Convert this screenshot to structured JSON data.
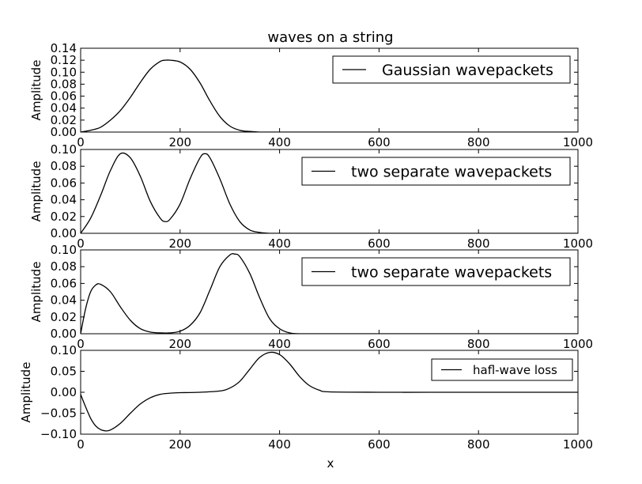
{
  "chart_data": {
    "title": "waves on a string",
    "xlabel": "x",
    "line_color": "#000000",
    "grid": false,
    "subplots": [
      {
        "type": "line",
        "ylabel": "Amplitude",
        "xlim": [
          0,
          1000
        ],
        "ylim": [
          0.0,
          0.14
        ],
        "yticks": [
          "0.00",
          "0.02",
          "0.04",
          "0.06",
          "0.08",
          "0.10",
          "0.12",
          "0.14"
        ],
        "xticks": [
          "0",
          "200",
          "400",
          "600",
          "800",
          "1000"
        ],
        "legend": {
          "label": "Gaussian wavepackets",
          "placement": "top-right",
          "size": "large"
        },
        "x": [
          0,
          20,
          40,
          60,
          80,
          100,
          120,
          140,
          160,
          170,
          180,
          200,
          220,
          240,
          260,
          280,
          300,
          320,
          340,
          360,
          380,
          400,
          500,
          600,
          700,
          800,
          900,
          1000
        ],
        "values": [
          0.0,
          0.003,
          0.008,
          0.02,
          0.036,
          0.058,
          0.083,
          0.105,
          0.118,
          0.12,
          0.12,
          0.117,
          0.105,
          0.082,
          0.052,
          0.026,
          0.01,
          0.003,
          0.001,
          0.0,
          0.0,
          0.0,
          0.0,
          0.0,
          0.0,
          0.0,
          0.0,
          0.0
        ]
      },
      {
        "type": "line",
        "ylabel": "Amplitude",
        "xlim": [
          0,
          1000
        ],
        "ylim": [
          0.0,
          0.1
        ],
        "yticks": [
          "0.00",
          "0.02",
          "0.04",
          "0.06",
          "0.08",
          "0.10"
        ],
        "xticks": [
          "0",
          "200",
          "400",
          "600",
          "800",
          "1000"
        ],
        "legend": {
          "label": "two separate wavepackets",
          "placement": "top-right",
          "size": "large"
        },
        "x": [
          0,
          20,
          40,
          60,
          80,
          100,
          120,
          140,
          160,
          170,
          180,
          200,
          220,
          240,
          250,
          260,
          280,
          300,
          320,
          340,
          360,
          380,
          400,
          500,
          600,
          700,
          800,
          900,
          1000
        ],
        "values": [
          0.0,
          0.018,
          0.045,
          0.075,
          0.095,
          0.09,
          0.068,
          0.038,
          0.018,
          0.014,
          0.017,
          0.035,
          0.065,
          0.09,
          0.095,
          0.09,
          0.065,
          0.035,
          0.014,
          0.004,
          0.001,
          0.0,
          0.0,
          0.0,
          0.0,
          0.0,
          0.0,
          0.0,
          0.0
        ]
      },
      {
        "type": "line",
        "ylabel": "Amplitude",
        "xlim": [
          0,
          1000
        ],
        "ylim": [
          0.0,
          0.1
        ],
        "yticks": [
          "0.00",
          "0.02",
          "0.04",
          "0.06",
          "0.08",
          "0.10"
        ],
        "xticks": [
          "0",
          "200",
          "400",
          "600",
          "800",
          "1000"
        ],
        "legend": {
          "label": "two separate wavepackets",
          "placement": "top-right",
          "size": "large"
        },
        "x": [
          0,
          10,
          20,
          30,
          40,
          60,
          80,
          100,
          120,
          140,
          160,
          180,
          200,
          220,
          240,
          260,
          280,
          300,
          310,
          320,
          340,
          360,
          380,
          400,
          420,
          440,
          500,
          600,
          700,
          800,
          900,
          1000
        ],
        "values": [
          0.0,
          0.03,
          0.05,
          0.058,
          0.059,
          0.05,
          0.032,
          0.016,
          0.006,
          0.002,
          0.001,
          0.001,
          0.003,
          0.01,
          0.025,
          0.052,
          0.08,
          0.094,
          0.095,
          0.092,
          0.072,
          0.043,
          0.018,
          0.006,
          0.001,
          0.0,
          0.0,
          0.0,
          0.0,
          0.0,
          0.0,
          0.0
        ]
      },
      {
        "type": "line",
        "ylabel": "Amplitude",
        "xlim": [
          0,
          1000
        ],
        "ylim": [
          -0.1,
          0.1
        ],
        "yticks": [
          "−0.10",
          "−0.05",
          "0.00",
          "0.05",
          "0.10"
        ],
        "xticks": [
          "0",
          "200",
          "400",
          "600",
          "800",
          "1000"
        ],
        "legend": {
          "label": "hafl-wave loss",
          "placement": "top-right",
          "size": "small"
        },
        "x": [
          0,
          10,
          20,
          30,
          40,
          50,
          60,
          80,
          100,
          120,
          140,
          160,
          180,
          200,
          240,
          280,
          300,
          320,
          340,
          360,
          380,
          400,
          420,
          440,
          460,
          480,
          500,
          600,
          700,
          800,
          900,
          1000
        ],
        "values": [
          -0.005,
          -0.035,
          -0.062,
          -0.08,
          -0.089,
          -0.092,
          -0.09,
          -0.074,
          -0.05,
          -0.028,
          -0.013,
          -0.005,
          -0.002,
          -0.001,
          0.0,
          0.003,
          0.01,
          0.026,
          0.055,
          0.083,
          0.095,
          0.09,
          0.068,
          0.038,
          0.016,
          0.005,
          0.001,
          0.0,
          0.0,
          0.0,
          0.0,
          0.0
        ]
      }
    ]
  }
}
